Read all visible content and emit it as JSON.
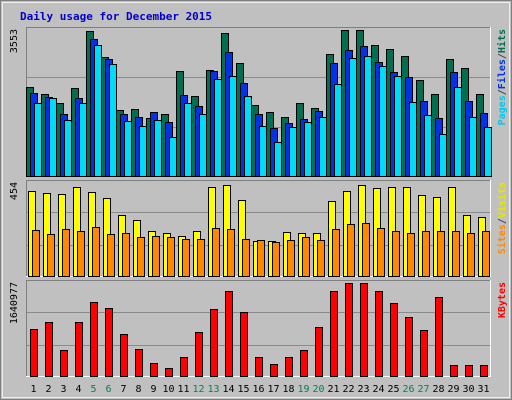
{
  "chart_data": {
    "type": "bar",
    "title": "Daily usage for December 2015",
    "categories": [
      "1",
      "2",
      "3",
      "4",
      "5",
      "6",
      "7",
      "8",
      "9",
      "10",
      "11",
      "12",
      "13",
      "14",
      "15",
      "16",
      "17",
      "18",
      "19",
      "20",
      "21",
      "22",
      "23",
      "24",
      "25",
      "26",
      "27",
      "28",
      "29",
      "30",
      "31"
    ],
    "weekend_days": [
      "5",
      "6",
      "12",
      "13",
      "19",
      "20",
      "26",
      "27"
    ],
    "panels": [
      {
        "id": "top",
        "max_label": "3553",
        "ylim": [
          0,
          3553
        ],
        "series": [
          {
            "name": "Hits",
            "color": "#006f4f",
            "values": [
              2170,
              1995,
              1785,
              2140,
              3540,
              2905,
              1615,
              1635,
              1420,
              1505,
              2555,
              1935,
              2590,
              3475,
              2745,
              1720,
              1550,
              1435,
              1785,
              1650,
              2975,
              3545,
              3545,
              3200,
              3100,
              2915,
              2330,
              1995,
              2855,
              2640,
              1990
            ]
          },
          {
            "name": "Files",
            "color": "#0032e6",
            "values": [
              2030,
              1925,
              1515,
              1890,
              3325,
              2850,
              1505,
              1430,
              1560,
              1310,
              1960,
              1700,
              2555,
              3010,
              2275,
              1515,
              1165,
              1280,
              1380,
              1590,
              2750,
              3060,
              3160,
              2775,
              2535,
              2420,
              1830,
              1410,
              2530,
              1815,
              1535
            ]
          },
          {
            "name": "Pages",
            "color": "#00dcf5",
            "values": [
              1775,
              1890,
              1370,
              1775,
              3195,
              2720,
              1335,
              1225,
              1370,
              945,
              1780,
              1515,
              2365,
              2430,
              1955,
              1225,
              825,
              1190,
              1315,
              1425,
              2250,
              2880,
              2915,
              2675,
              2440,
              1790,
              1475,
              1030,
              2155,
              1445,
              1200
            ]
          }
        ]
      },
      {
        "id": "middle",
        "max_label": "454",
        "ylim": [
          0,
          454
        ],
        "series": [
          {
            "name": "Visits",
            "color": "#ffff00",
            "values": [
              415,
              405,
              400,
              436,
              411,
              380,
              298,
              271,
              222,
              211,
              197,
              218,
              436,
              444,
              371,
              170,
              173,
              216,
              212,
              208,
              365,
              417,
              443,
              431,
              433,
              434,
              394,
              388,
              435,
              296,
              290
            ]
          },
          {
            "name": "Sites",
            "color": "#ff8800",
            "values": [
              224,
              207,
              231,
              221,
              240,
              204,
              211,
              191,
              193,
              192,
              181,
              181,
              235,
              231,
              181,
              174,
              168,
              178,
              189,
              178,
              231,
              255,
              258,
              232,
              222,
              208,
              222,
              220,
              222,
              209,
              219
            ]
          }
        ]
      },
      {
        "id": "bottom",
        "max_label": "1640977",
        "ylim": [
          0,
          1640977
        ],
        "series": [
          {
            "name": "KBytes",
            "color": "#ff0000",
            "values": [
              827000,
              950000,
              467000,
              957000,
              1310000,
              1195000,
              743000,
              475000,
              228000,
              142000,
              338000,
              784000,
              1190000,
              1508000,
              1135000,
              338000,
              208000,
              338000,
              457000,
              860000,
              1500000,
              1640977,
              1640977,
              1500000,
              1290000,
              1040000,
              807000,
              1389000,
              194000,
              194000,
              194000
            ]
          }
        ]
      }
    ],
    "legend_right": {
      "top": [
        {
          "text": "Pages",
          "color": "#00c8f0"
        },
        {
          "text": "/",
          "color": "#4a4a4a"
        },
        {
          "text": "Files",
          "color": "#0032e6"
        },
        {
          "text": "/",
          "color": "#4a4a4a"
        },
        {
          "text": "Hits",
          "color": "#006f4f"
        }
      ],
      "middle": [
        {
          "text": "Sites",
          "color": "#ff8800"
        },
        {
          "text": "/",
          "color": "#4a4a4a"
        },
        {
          "text": "Visits",
          "color": "#e6e600"
        }
      ],
      "bottom": [
        {
          "text": "KBytes",
          "color": "#ff0000"
        }
      ]
    },
    "grid": true,
    "colors": {
      "frame_bg": "#c0c0c0",
      "plot_bg": "#c0c0c0",
      "grid": "#8a8a8a",
      "title": "#0000cc",
      "day_label": "#000000",
      "weekend_label": "#00805c"
    }
  }
}
